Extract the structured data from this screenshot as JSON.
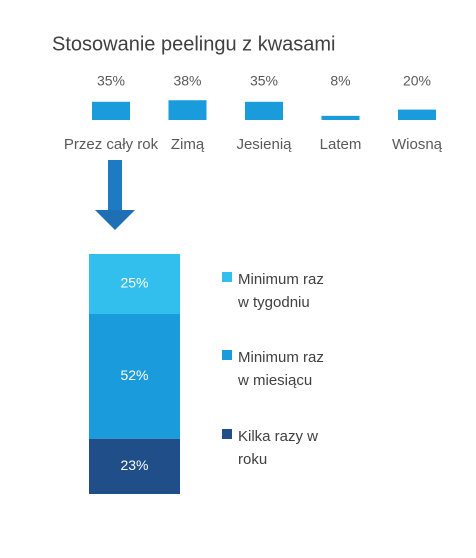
{
  "chart_data": [
    {
      "type": "bar",
      "title": "Stosowanie peelingu z kwasami",
      "categories": [
        "Przez cały rok",
        "Zimą",
        "Jesienią",
        "Latem",
        "Wiosną"
      ],
      "values": [
        35,
        38,
        35,
        8,
        20
      ],
      "value_labels": [
        "35%",
        "38%",
        "35%",
        "8%",
        "20%"
      ],
      "color": "#1a9bdc"
    },
    {
      "type": "stacked_bar",
      "series": [
        {
          "name": "Minimum raz w tygodniu",
          "color": "#33bfee",
          "values": [
            25
          ],
          "value_labels": [
            "25%"
          ]
        },
        {
          "name": "Minimum raz w miesiącu",
          "color": "#1a9bdc",
          "values": [
            52
          ],
          "value_labels": [
            "52%"
          ]
        },
        {
          "name": "Kilka razy w roku",
          "color": "#1f4e89",
          "values": [
            23
          ],
          "value_labels": [
            "23%"
          ]
        }
      ]
    }
  ]
}
